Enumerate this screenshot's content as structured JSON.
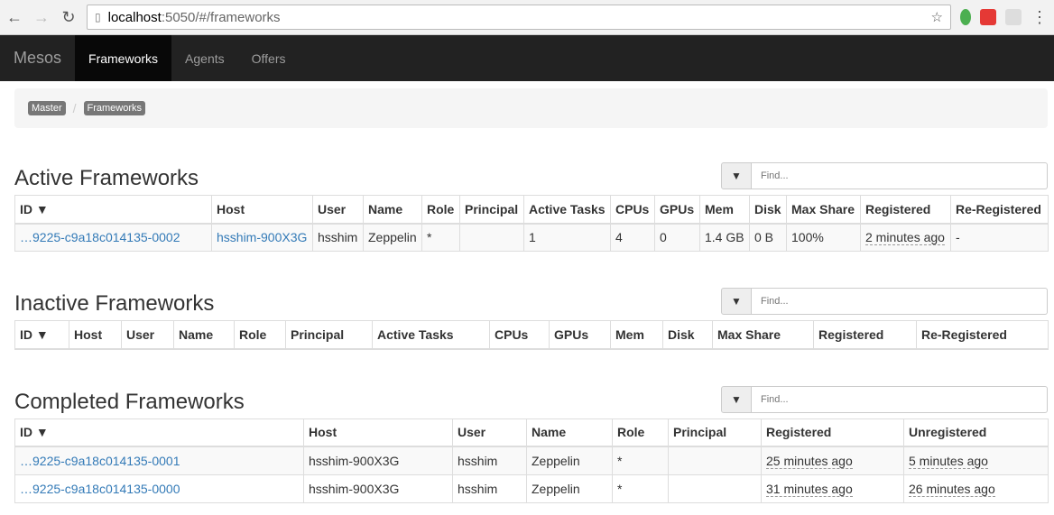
{
  "browser": {
    "url_host": "localhost",
    "url_path": ":5050/#/frameworks"
  },
  "navbar": {
    "brand": "Mesos",
    "items": [
      "Frameworks",
      "Agents",
      "Offers"
    ],
    "active": "Frameworks"
  },
  "breadcrumb": [
    "Master",
    "Frameworks"
  ],
  "filter_placeholder": "Find...",
  "active": {
    "title": "Active Frameworks",
    "headers": [
      "ID ▼",
      "Host",
      "User",
      "Name",
      "Role",
      "Principal",
      "Active Tasks",
      "CPUs",
      "GPUs",
      "Mem",
      "Disk",
      "Max Share",
      "Registered",
      "Re-Registered"
    ],
    "rows": [
      [
        "…9225-c9a18c014135-0002",
        "hsshim-900X3G",
        "hsshim",
        "Zeppelin",
        "*",
        "",
        "1",
        "4",
        "0",
        "1.4 GB",
        "0 B",
        "100%",
        "2 minutes ago",
        "-"
      ]
    ]
  },
  "inactive": {
    "title": "Inactive Frameworks",
    "headers": [
      "ID ▼",
      "Host",
      "User",
      "Name",
      "Role",
      "Principal",
      "Active Tasks",
      "CPUs",
      "GPUs",
      "Mem",
      "Disk",
      "Max Share",
      "Registered",
      "Re-Registered"
    ],
    "rows": []
  },
  "completed": {
    "title": "Completed Frameworks",
    "headers": [
      "ID ▼",
      "Host",
      "User",
      "Name",
      "Role",
      "Principal",
      "Registered",
      "Unregistered"
    ],
    "rows": [
      [
        "…9225-c9a18c014135-0001",
        "hsshim-900X3G",
        "hsshim",
        "Zeppelin",
        "*",
        "",
        "25 minutes ago",
        "5 minutes ago"
      ],
      [
        "…9225-c9a18c014135-0000",
        "hsshim-900X3G",
        "hsshim",
        "Zeppelin",
        "*",
        "",
        "31 minutes ago",
        "26 minutes ago"
      ]
    ]
  }
}
